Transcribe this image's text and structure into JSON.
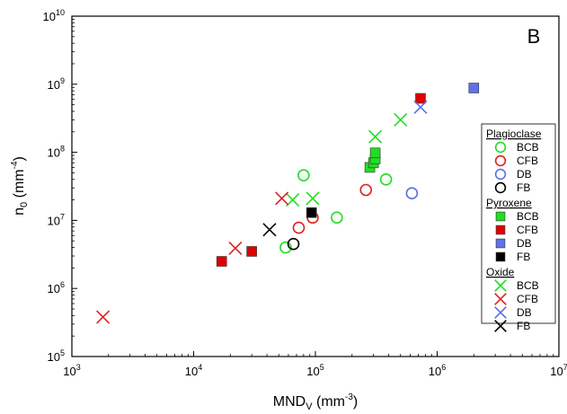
{
  "chart_data": {
    "type": "scatter",
    "panel_label": "B",
    "xlabel": {
      "base": "MND",
      "sub": "V",
      "unit_open": " (mm",
      "exp": "-3",
      "unit_close": ")"
    },
    "ylabel": {
      "base": "n",
      "sub": "0",
      "unit_open": " (mm",
      "exp": "-4",
      "unit_close": ")"
    },
    "x_scale": "log",
    "y_scale": "log",
    "xlim": [
      1000,
      10000000
    ],
    "ylim": [
      100000,
      10000000000
    ],
    "x_ticks": [
      {
        "value": 1000,
        "base": "10",
        "exp": "3"
      },
      {
        "value": 10000,
        "base": "10",
        "exp": "4"
      },
      {
        "value": 100000,
        "base": "10",
        "exp": "5"
      },
      {
        "value": 1000000,
        "base": "10",
        "exp": "6"
      },
      {
        "value": 10000000,
        "base": "10",
        "exp": "7"
      }
    ],
    "y_ticks": [
      {
        "value": 100000,
        "base": "10",
        "exp": "5"
      },
      {
        "value": 1000000,
        "base": "10",
        "exp": "6"
      },
      {
        "value": 10000000,
        "base": "10",
        "exp": "7"
      },
      {
        "value": 100000000,
        "base": "10",
        "exp": "8"
      },
      {
        "value": 1000000000,
        "base": "10",
        "exp": "9"
      },
      {
        "value": 10000000000,
        "base": "10",
        "exp": "10"
      }
    ],
    "grid": false,
    "legend_position": "right",
    "legend_groups": [
      {
        "title": "Plagioclase",
        "marker": "circle-open",
        "entries": [
          "BCB",
          "CFB",
          "DB",
          "FB"
        ]
      },
      {
        "title": "Pyroxene",
        "marker": "square-filled",
        "entries": [
          "BCB",
          "CFB",
          "DB",
          "FB"
        ]
      },
      {
        "title": "Oxide",
        "marker": "x",
        "entries": [
          "BCB",
          "CFB",
          "DB",
          "FB"
        ]
      }
    ],
    "colors": {
      "BCB": "#22dd22",
      "CFB": "#e02020",
      "DB": "#5a6fe0",
      "FB": "#000000"
    },
    "square_fill": {
      "BCB": "#22dd22",
      "CFB": "#e00000",
      "DB": "#6070e8",
      "FB": "#000000"
    },
    "series": [
      {
        "mineral": "Plagioclase",
        "group": "BCB",
        "marker": "circle-open",
        "points": [
          [
            57000,
            4000000
          ],
          [
            80000,
            46000000
          ],
          [
            150000,
            11000000
          ],
          [
            380000,
            40000000
          ]
        ]
      },
      {
        "mineral": "Plagioclase",
        "group": "CFB",
        "marker": "circle-open",
        "points": [
          [
            73000,
            7800000
          ],
          [
            95000,
            11000000
          ],
          [
            260000,
            28000000
          ]
        ]
      },
      {
        "mineral": "Plagioclase",
        "group": "DB",
        "marker": "circle-open",
        "points": [
          [
            620000,
            25000000
          ]
        ]
      },
      {
        "mineral": "Plagioclase",
        "group": "FB",
        "marker": "circle-open",
        "points": [
          [
            66000,
            4500000
          ]
        ]
      },
      {
        "mineral": "Pyroxene",
        "group": "BCB",
        "marker": "square-filled",
        "points": [
          [
            280000,
            60000000
          ],
          [
            300000,
            70000000
          ],
          [
            310000,
            80000000
          ],
          [
            310000,
            98000000
          ]
        ]
      },
      {
        "mineral": "Pyroxene",
        "group": "CFB",
        "marker": "square-filled",
        "points": [
          [
            17000,
            2500000
          ],
          [
            30000,
            3500000
          ],
          [
            730000,
            620000000
          ]
        ]
      },
      {
        "mineral": "Pyroxene",
        "group": "DB",
        "marker": "square-filled",
        "points": [
          [
            2000000,
            880000000
          ]
        ]
      },
      {
        "mineral": "Pyroxene",
        "group": "FB",
        "marker": "square-filled",
        "points": [
          [
            93000,
            13000000
          ]
        ]
      },
      {
        "mineral": "Oxide",
        "group": "BCB",
        "marker": "x",
        "points": [
          [
            65000,
            20000000
          ],
          [
            95000,
            21000000
          ],
          [
            310000,
            170000000
          ],
          [
            500000,
            300000000
          ]
        ]
      },
      {
        "mineral": "Oxide",
        "group": "CFB",
        "marker": "x",
        "points": [
          [
            1800,
            380000
          ],
          [
            22000,
            3900000
          ],
          [
            53000,
            21000000
          ]
        ]
      },
      {
        "mineral": "Oxide",
        "group": "DB",
        "marker": "x",
        "points": [
          [
            730000,
            460000000
          ]
        ]
      },
      {
        "mineral": "Oxide",
        "group": "FB",
        "marker": "x",
        "points": [
          [
            42000,
            7300000
          ]
        ]
      }
    ]
  }
}
